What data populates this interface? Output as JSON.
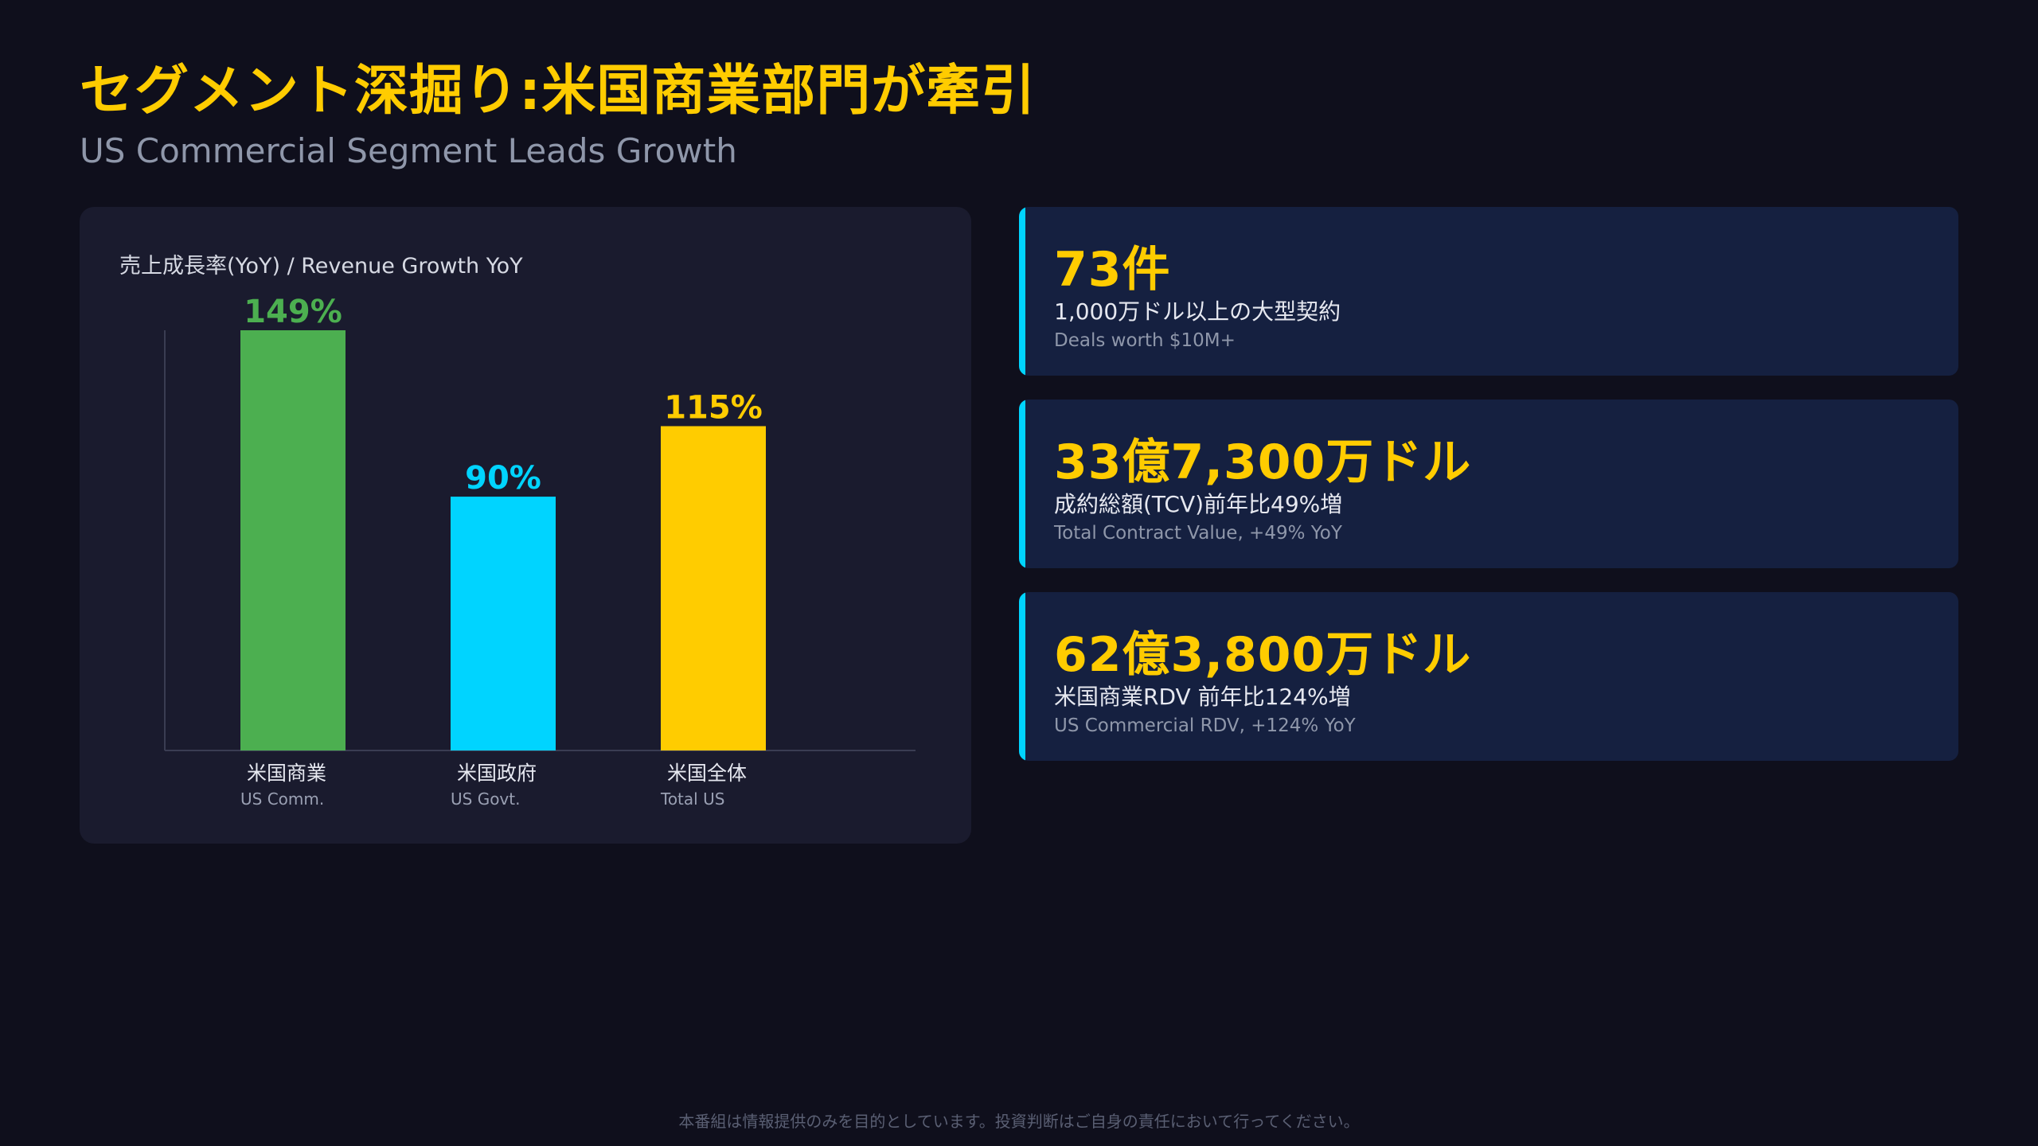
{
  "page": {
    "title": "セグメント深掘り:米国商業部門が牽引",
    "subtitle": "US Commercial Segment Leads Growth",
    "footer": "本番組は情報提供のみを目的としています。投資判断はご自身の責任において行ってください。"
  },
  "chart_data": {
    "type": "bar",
    "title": "売上成長率(YoY) / Revenue Growth YoY",
    "categories": [
      "米国商業",
      "米国政府",
      "米国全体"
    ],
    "category_sublabels": [
      "US Comm.",
      "US Govt.",
      "Total US"
    ],
    "values": [
      149,
      90,
      115
    ],
    "data_labels": [
      "149%",
      "90%",
      "115%"
    ],
    "colors": [
      "#4caf50",
      "#00d4ff",
      "#ffcc00"
    ],
    "ylim": [
      0,
      149
    ],
    "grid": false,
    "legend": "none"
  },
  "stats": [
    {
      "value": "73件",
      "label_jp": "1,000万ドル以上の大型契約",
      "label_en": "Deals worth $10M+"
    },
    {
      "value": "33億7,300万ドル",
      "label_jp": "成約総額(TCV)前年比49%増",
      "label_en": "Total Contract Value, +49% YoY"
    },
    {
      "value": "62億3,800万ドル",
      "label_jp": "米国商業RDV 前年比124%増",
      "label_en": "US Commercial RDV, +124% YoY"
    }
  ],
  "colors": {
    "background": "#0f0f1c",
    "card": "#1a1b2e",
    "stat_card": "#152040",
    "accent": "#00d4ff",
    "highlight": "#ffcc00"
  }
}
